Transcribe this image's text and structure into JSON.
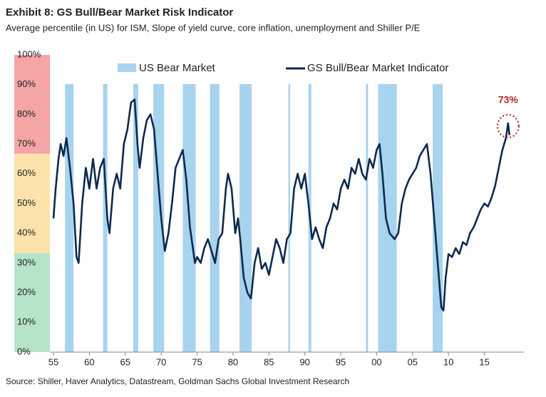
{
  "chart_data": {
    "type": "line",
    "title": "Exhibit 8: GS Bull/Bear Market Risk Indicator",
    "subtitle": "Average percentile (in US) for ISM, Slope of yield curve, core inflation, unemployment and Shiller P/E",
    "source": "Source: Shiller, Haver Analytics, Datastream, Goldman Sachs Global Investment Research",
    "xlim": [
      1954.5,
      2020.5
    ],
    "xticks": [
      {
        "value": 1955,
        "label": "55"
      },
      {
        "value": 1960,
        "label": "60"
      },
      {
        "value": 1965,
        "label": "65"
      },
      {
        "value": 1970,
        "label": "70"
      },
      {
        "value": 1975,
        "label": "75"
      },
      {
        "value": 1980,
        "label": "80"
      },
      {
        "value": 1985,
        "label": "85"
      },
      {
        "value": 1990,
        "label": "90"
      },
      {
        "value": 1995,
        "label": "95"
      },
      {
        "value": 2000,
        "label": "00"
      },
      {
        "value": 2005,
        "label": "05"
      },
      {
        "value": 2010,
        "label": "10"
      },
      {
        "value": 2015,
        "label": "15"
      }
    ],
    "ylim": [
      0,
      100
    ],
    "yticks": [
      {
        "value": 0,
        "label": "0%"
      },
      {
        "value": 10,
        "label": "10%"
      },
      {
        "value": 20,
        "label": "20%"
      },
      {
        "value": 30,
        "label": "30%"
      },
      {
        "value": 40,
        "label": "40%"
      },
      {
        "value": 50,
        "label": "50%"
      },
      {
        "value": 60,
        "label": "60%"
      },
      {
        "value": 70,
        "label": "70%"
      },
      {
        "value": 80,
        "label": "80%"
      },
      {
        "value": 90,
        "label": "90%"
      },
      {
        "value": 100,
        "label": "100%"
      }
    ],
    "zones": [
      {
        "from": 66.7,
        "to": 100,
        "color": "#f5a5a5"
      },
      {
        "from": 33.3,
        "to": 66.7,
        "color": "#fde3ab"
      },
      {
        "from": 0,
        "to": 33.3,
        "color": "#b5e4c8"
      }
    ],
    "bands": {
      "name": "US Bear Market",
      "color": "#a8d3ee",
      "ranges": [
        [
          1956.6,
          1957.8
        ],
        [
          1961.9,
          1962.5
        ],
        [
          1966.1,
          1966.8
        ],
        [
          1968.9,
          1970.4
        ],
        [
          1973.0,
          1974.8
        ],
        [
          1976.8,
          1978.1
        ],
        [
          1980.9,
          1982.6
        ],
        [
          1987.7,
          1987.95
        ],
        [
          1990.5,
          1990.9
        ],
        [
          1998.5,
          1998.8
        ],
        [
          2000.2,
          2002.8
        ],
        [
          2007.8,
          2009.2
        ]
      ]
    },
    "series": [
      {
        "name": "GS Bull/Bear Market Indicator",
        "color": "#0d2a4e",
        "x": [
          1955,
          1955.3,
          1955.7,
          1956,
          1956.4,
          1956.8,
          1957.3,
          1957.8,
          1958.2,
          1958.5,
          1959,
          1959.5,
          1960,
          1960.5,
          1961,
          1961.5,
          1962,
          1962.5,
          1962.8,
          1963.3,
          1963.8,
          1964.3,
          1964.8,
          1965.3,
          1965.8,
          1966.3,
          1966.7,
          1967,
          1967.5,
          1968,
          1968.5,
          1969,
          1969.5,
          1970,
          1970.5,
          1971,
          1971.5,
          1972,
          1972.5,
          1973,
          1973.5,
          1974,
          1974.7,
          1975,
          1975.5,
          1976,
          1976.5,
          1977,
          1977.5,
          1978,
          1978.5,
          1979,
          1979.3,
          1979.8,
          1980.3,
          1980.7,
          1981,
          1981.5,
          1982,
          1982.5,
          1983,
          1983.5,
          1984,
          1984.5,
          1985,
          1985.5,
          1986,
          1986.5,
          1987,
          1987.5,
          1988,
          1988.5,
          1989,
          1989.5,
          1990,
          1990.5,
          1991,
          1991.5,
          1992,
          1992.5,
          1993,
          1993.5,
          1994,
          1994.5,
          1995,
          1995.5,
          1996,
          1996.5,
          1997,
          1997.5,
          1998,
          1998.5,
          1999,
          1999.5,
          2000,
          2000.4,
          2000.8,
          2001.3,
          2001.8,
          2002.5,
          2003,
          2003.5,
          2004,
          2004.5,
          2005,
          2005.5,
          2006,
          2006.5,
          2007,
          2007.5,
          2008,
          2008.5,
          2009,
          2009.3,
          2009.6,
          2010,
          2010.5,
          2011,
          2011.5,
          2012,
          2012.5,
          2013,
          2013.5,
          2014,
          2014.5,
          2015,
          2015.5,
          2016,
          2016.5,
          2017,
          2017.5,
          2018,
          2018.3,
          2018.5
        ],
        "values": [
          45,
          55,
          65,
          70,
          66,
          72,
          62,
          50,
          32,
          30,
          50,
          62,
          55,
          65,
          55,
          62,
          65,
          45,
          40,
          55,
          60,
          55,
          70,
          75,
          84,
          85,
          70,
          62,
          72,
          78,
          80,
          75,
          60,
          45,
          34,
          40,
          50,
          62,
          65,
          68,
          58,
          42,
          30,
          32,
          30,
          35,
          38,
          34,
          30,
          38,
          40,
          55,
          60,
          55,
          40,
          45,
          38,
          25,
          20,
          18,
          30,
          35,
          28,
          30,
          26,
          32,
          38,
          35,
          30,
          38,
          40,
          55,
          60,
          55,
          60,
          50,
          38,
          42,
          38,
          35,
          42,
          45,
          50,
          48,
          55,
          58,
          55,
          62,
          60,
          65,
          60,
          58,
          65,
          62,
          68,
          70,
          60,
          45,
          40,
          38,
          40,
          50,
          55,
          58,
          60,
          62,
          66,
          68,
          70,
          60,
          45,
          30,
          15,
          14,
          25,
          33,
          32,
          35,
          33,
          37,
          36,
          40,
          42,
          45,
          48,
          50,
          49,
          52,
          56,
          62,
          68,
          72,
          77,
          73
        ]
      }
    ],
    "annotation": "73%"
  }
}
